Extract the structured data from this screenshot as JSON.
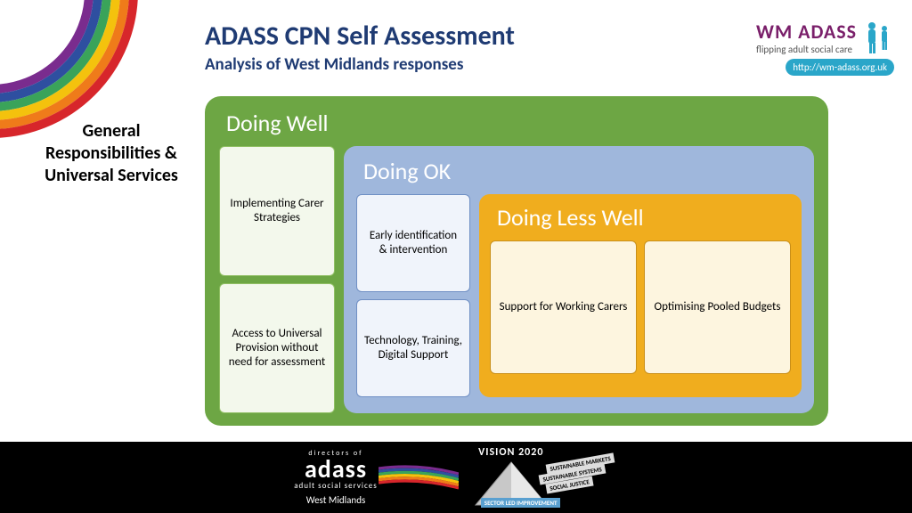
{
  "header": {
    "title": "ADASS CPN Self Assessment",
    "subtitle": "Analysis of West Midlands responses",
    "title_color": "#1f3b73"
  },
  "logo": {
    "brand": "WM ADASS",
    "brand_color": "#7a1f6a",
    "tagline": "flipping adult social care",
    "url_text": "http://wm-adass.org.uk",
    "url_bg": "#2aa6c9",
    "url_color": "#ffffff",
    "people_color": "#2aa6c9"
  },
  "rainbow": {
    "colors": [
      "#7a2c8e",
      "#2e4fa0",
      "#3aa35a",
      "#f4c20d",
      "#ef7b1a",
      "#d7262b"
    ],
    "stroke_width": 10
  },
  "sidebar": {
    "label": "General Responsibilities & Universal Services"
  },
  "diagram": {
    "level1": {
      "title": "Doing Well",
      "bg": "#6da644",
      "card_bg": "#f3f8ec",
      "card_border": "#8fbf63",
      "cards": [
        "Implementing Carer Strategies",
        "Access to Universal Provision without need for assessment"
      ]
    },
    "level2": {
      "title": "Doing OK",
      "bg": "#9fb7dc",
      "card_bg": "#f0f4fb",
      "card_border": "#6f8fc4",
      "cards": [
        "Early identification & intervention",
        "Technology, Training, Digital Support"
      ]
    },
    "level3": {
      "title": "Doing Less Well",
      "bg": "#f0ad1e",
      "card_bg": "#fdf5df",
      "card_border": "#c98f18",
      "cards": [
        "Support for Working Carers",
        "Optimising Pooled Budgets"
      ]
    }
  },
  "footer": {
    "bg": "#000000",
    "logo": {
      "top": "directors of",
      "main": "adass",
      "sub": "adult social services",
      "region": "West Midlands"
    },
    "vision": {
      "title": "VISION 2020",
      "banners": [
        "SUSTAINABLE MARKETS",
        "SUSTAINABLE SYSTEMS",
        "SOCIAL JUSTICE",
        "SECTOR LED IMPROVEMENT"
      ]
    }
  }
}
